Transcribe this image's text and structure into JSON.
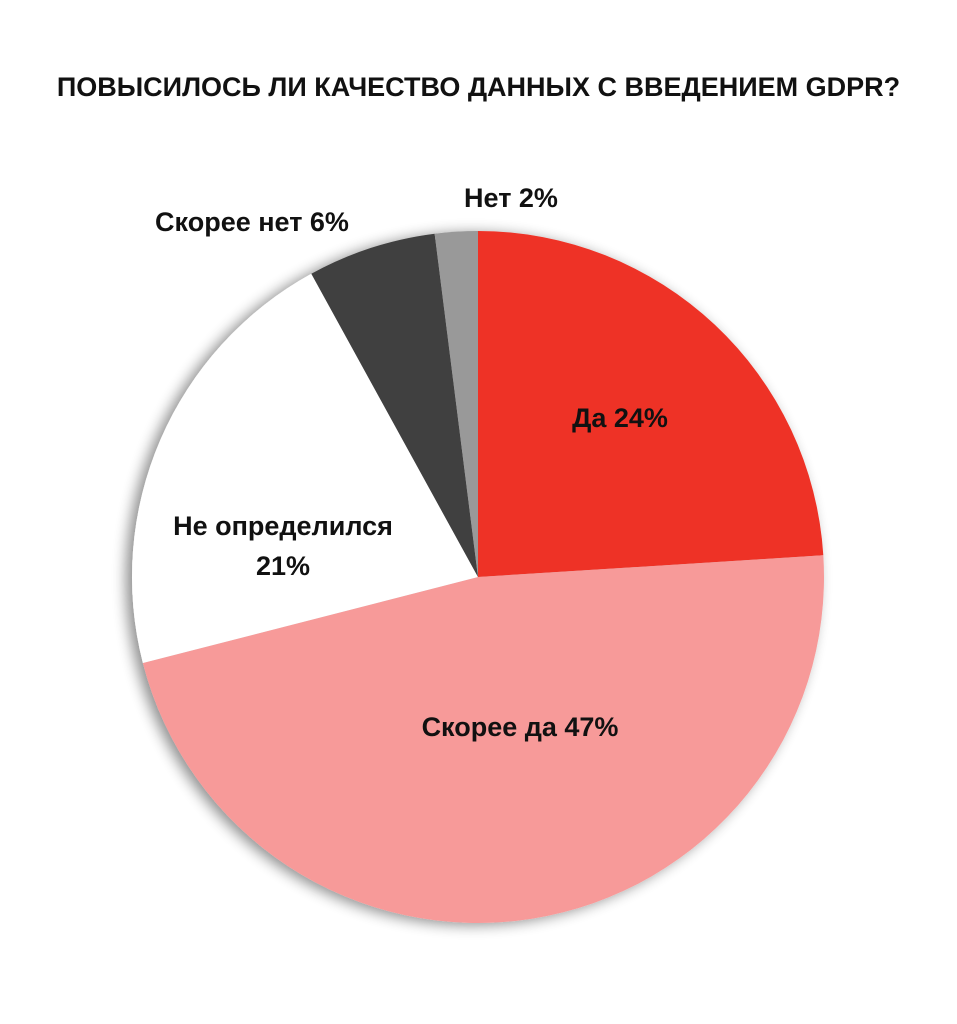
{
  "chart_data": {
    "type": "pie",
    "title": "ПОВЫСИЛОСЬ ЛИ КАЧЕСТВО ДАННЫХ С ВВЕДЕНИЕМ GDPR?",
    "slices": [
      {
        "label": "Да",
        "value": 24,
        "value_text": "24%",
        "color": "#ee3327",
        "label_text": "Да 24%"
      },
      {
        "label": "Скорее да",
        "value": 47,
        "value_text": "47%",
        "color": "#f79a99",
        "label_text": "Скорее да 47%"
      },
      {
        "label": "Не определился",
        "value": 21,
        "value_text": "21%",
        "color": "#ffffff",
        "label_line1": "Не определился",
        "label_line2": "21%"
      },
      {
        "label": "Скорее нет",
        "value": 6,
        "value_text": "6%",
        "color": "#404040",
        "label_text": "Скорее нет 6%"
      },
      {
        "label": "Нет",
        "value": 2,
        "value_text": "2%",
        "color": "#999999",
        "label_text": "Нет 2%"
      }
    ],
    "start_angle_deg": 0,
    "direction": "clockwise",
    "legend": "none",
    "data_labels": "on"
  }
}
